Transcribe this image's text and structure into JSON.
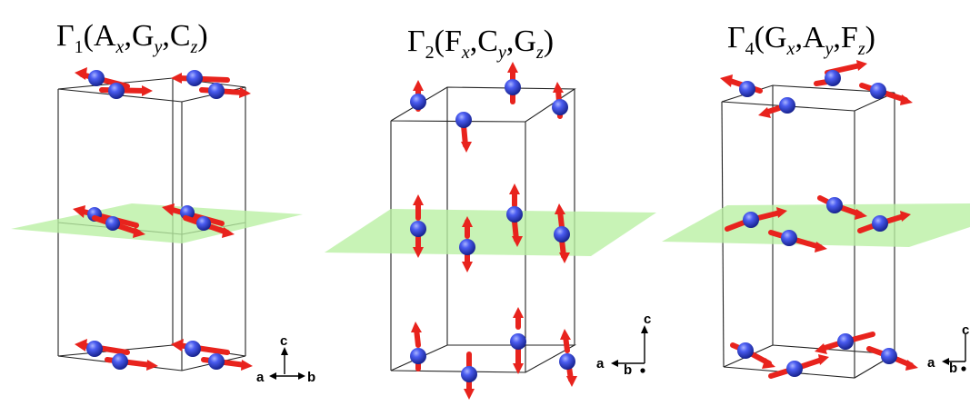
{
  "panels": [
    {
      "id": "gamma1",
      "title": {
        "sym": "Γ",
        "idx": "1",
        "parts": [
          {
            "b": "A",
            "s": "x"
          },
          {
            "b": "G",
            "s": "y"
          },
          {
            "b": "C",
            "s": "z"
          }
        ]
      },
      "axes": {
        "labels": [
          "c",
          "a",
          "b"
        ]
      }
    },
    {
      "id": "gamma2",
      "title": {
        "sym": "Γ",
        "idx": "2",
        "parts": [
          {
            "b": "F",
            "s": "x"
          },
          {
            "b": "C",
            "s": "y"
          },
          {
            "b": "G",
            "s": "z"
          }
        ]
      },
      "axes": {
        "labels": [
          "c",
          "a",
          "b"
        ]
      }
    },
    {
      "id": "gamma4",
      "title": {
        "sym": "Γ",
        "idx": "4",
        "parts": [
          {
            "b": "G",
            "s": "x"
          },
          {
            "b": "A",
            "s": "y"
          },
          {
            "b": "F",
            "s": "z"
          }
        ]
      },
      "axes": {
        "labels": [
          "c",
          "a",
          "b"
        ]
      }
    }
  ],
  "colors": {
    "spin_arrow": "#e8231d",
    "atom": "#2f3fd8",
    "plane": "#b9f0a2",
    "cell_edge": "#222222"
  }
}
